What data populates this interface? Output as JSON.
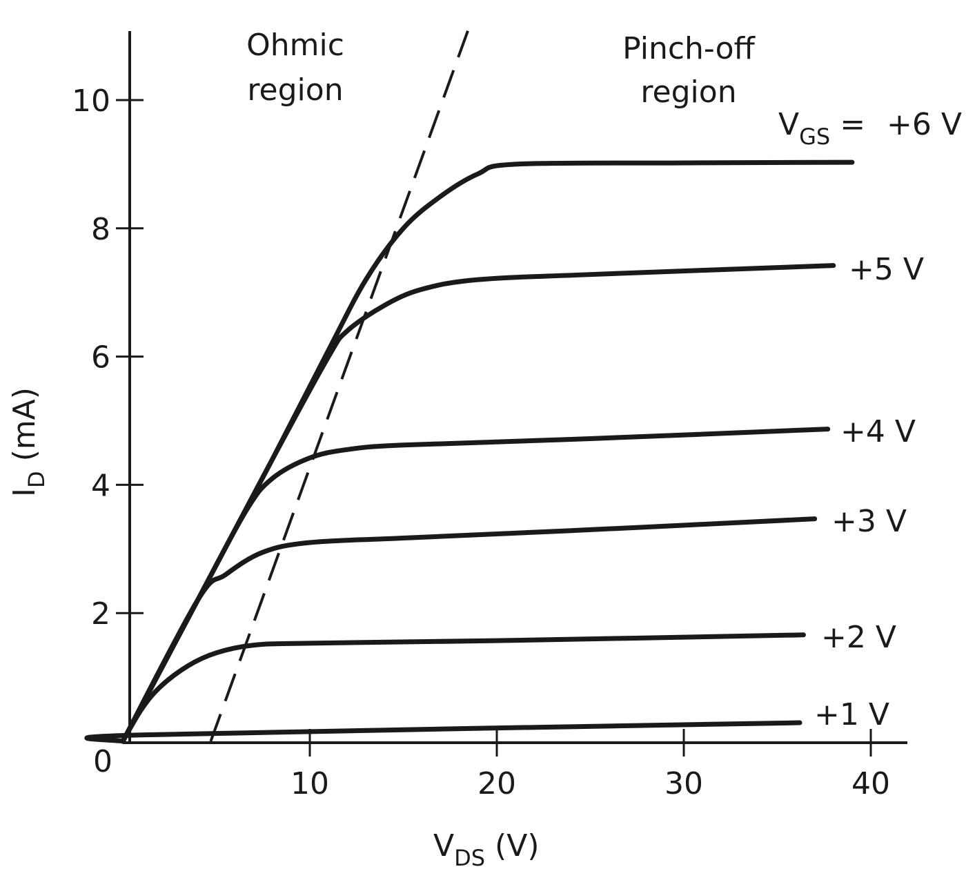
{
  "chart_data": {
    "type": "line",
    "xlabel": {
      "main": "V",
      "sub": "DS",
      "unit": " (V)"
    },
    "ylabel": {
      "main": "I",
      "sub": "D",
      "unit": " (mA)"
    },
    "xlim": [
      0,
      42
    ],
    "ylim": [
      0,
      11
    ],
    "xticks": [
      10,
      20,
      30,
      40
    ],
    "yticks": [
      2,
      4,
      6,
      8,
      10
    ],
    "origin_label": "0",
    "grid": false,
    "ink_color": "#1a1a1a",
    "series_prefix": {
      "main": "V",
      "sub": "GS",
      "eq": " = "
    },
    "series": [
      {
        "name": "+6 V",
        "points": [
          [
            0,
            0
          ],
          [
            4,
            2.2
          ],
          [
            8,
            4.4
          ],
          [
            11,
            6.1
          ],
          [
            13,
            7.2
          ],
          [
            15,
            8.0
          ],
          [
            17,
            8.5
          ],
          [
            19,
            8.85
          ],
          [
            21,
            9.0
          ],
          [
            30,
            9.02
          ],
          [
            39,
            9.03
          ]
        ]
      },
      {
        "name": "+5 V",
        "points": [
          [
            0,
            0
          ],
          [
            4,
            2.2
          ],
          [
            8,
            4.4
          ],
          [
            11,
            6.0
          ],
          [
            12,
            6.4
          ],
          [
            14,
            6.8
          ],
          [
            16,
            7.05
          ],
          [
            19,
            7.2
          ],
          [
            25,
            7.28
          ],
          [
            38,
            7.42
          ]
        ]
      },
      {
        "name": "+4 V",
        "points": [
          [
            0,
            0
          ],
          [
            4,
            2.2
          ],
          [
            6.6,
            3.6
          ],
          [
            8,
            4.1
          ],
          [
            10,
            4.42
          ],
          [
            12,
            4.55
          ],
          [
            15,
            4.62
          ],
          [
            25,
            4.72
          ],
          [
            37.7,
            4.87
          ]
        ]
      },
      {
        "name": "+3 V",
        "points": [
          [
            0,
            0
          ],
          [
            4,
            2.2
          ],
          [
            5.5,
            2.6
          ],
          [
            7.5,
            2.95
          ],
          [
            10,
            3.1
          ],
          [
            15,
            3.17
          ],
          [
            25,
            3.3
          ],
          [
            37,
            3.47
          ]
        ]
      },
      {
        "name": "+2 V",
        "points": [
          [
            0,
            0
          ],
          [
            1,
            0.5
          ],
          [
            2,
            0.85
          ],
          [
            3.5,
            1.18
          ],
          [
            5,
            1.38
          ],
          [
            7,
            1.5
          ],
          [
            10,
            1.53
          ],
          [
            20,
            1.57
          ],
          [
            36.4,
            1.66
          ]
        ]
      },
      {
        "name": "+1 V",
        "points": [
          [
            0,
            0
          ],
          [
            1,
            0.1
          ],
          [
            36.2,
            0.29
          ]
        ]
      }
    ],
    "boundary": {
      "style": "dashed",
      "points": [
        [
          4.7,
          0
        ],
        [
          18.45,
          11.08
        ]
      ]
    },
    "annotations": {
      "ohmic": [
        "Ohmic",
        "region"
      ],
      "pinchoff": [
        "Pinch-off",
        "region"
      ]
    }
  }
}
